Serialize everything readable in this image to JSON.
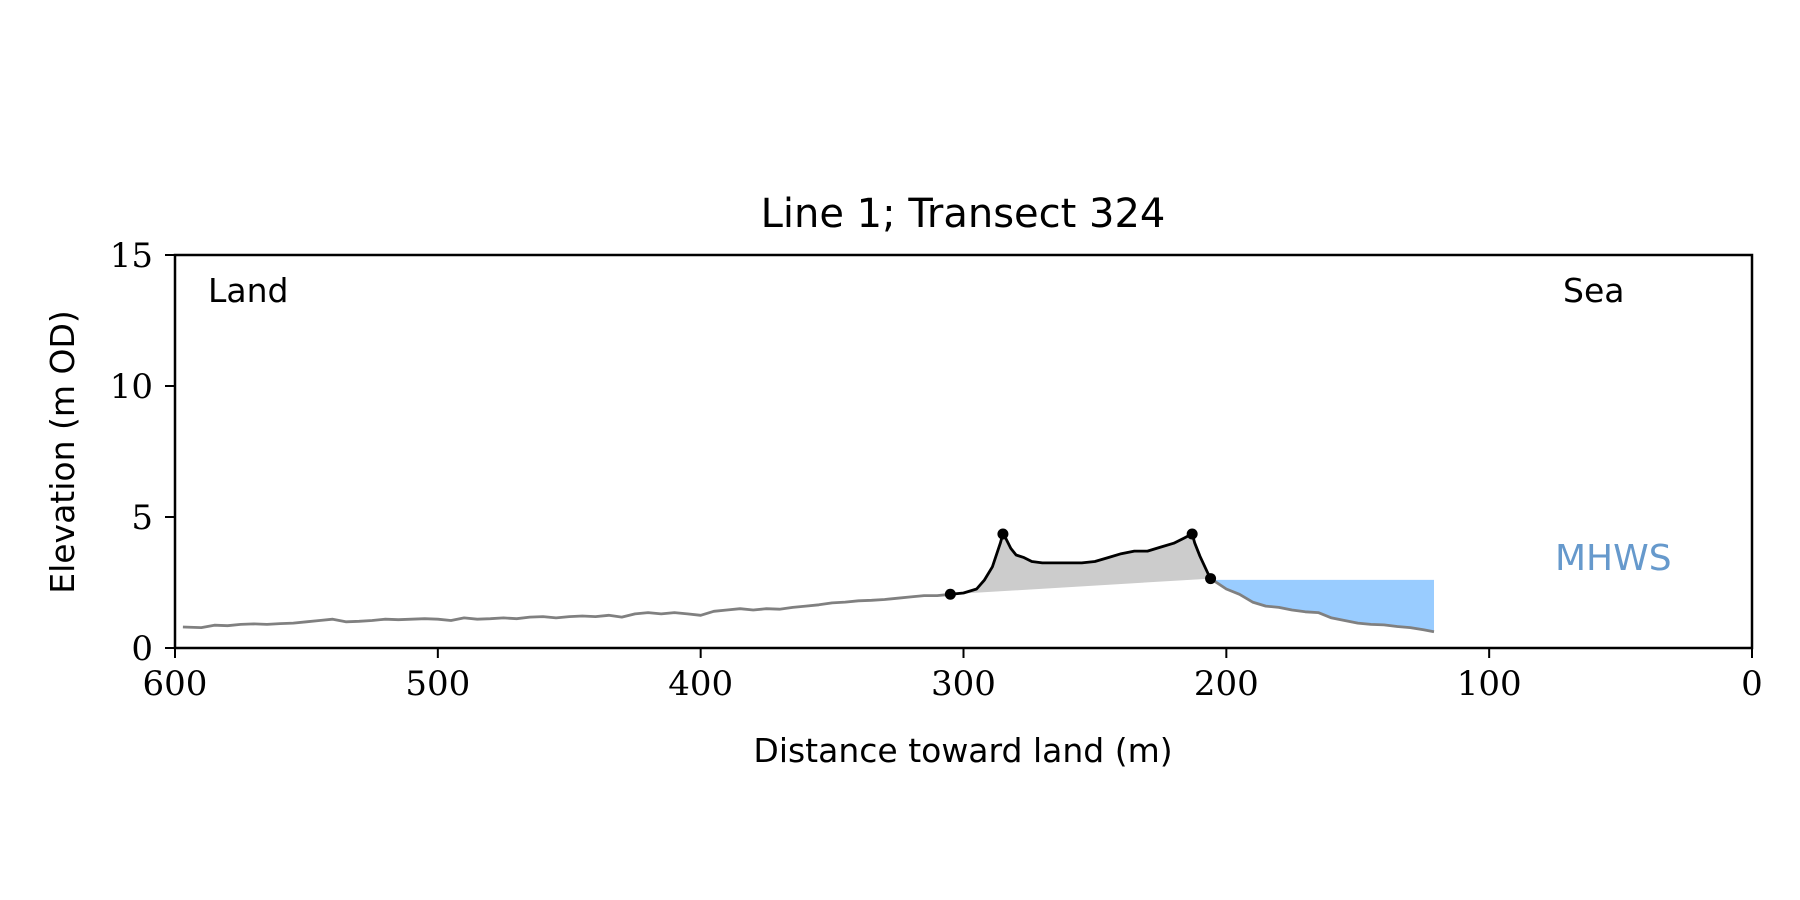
{
  "chart_data": {
    "type": "line",
    "title": "Line 1; Transect 324",
    "xlabel": "Distance toward land (m)",
    "ylabel": "Elevation (m OD)",
    "xlim": [
      600,
      0
    ],
    "ylim": [
      0,
      15
    ],
    "x_ticks": [
      600,
      500,
      400,
      300,
      200,
      100,
      0
    ],
    "y_ticks": [
      0,
      5,
      10,
      15
    ],
    "annotations": {
      "land": "Land",
      "sea": "Sea",
      "mhws": "MHWS"
    },
    "grid": false,
    "colors": {
      "profile": "#808080",
      "dune": "#000000",
      "dune_fill": "#cccccc",
      "water": "#99ccff",
      "mhws_label": "#6699cc"
    },
    "mhws_level": 2.6,
    "series": [
      {
        "role": "profile",
        "x": [
          597,
          590,
          585,
          580,
          575,
          570,
          565,
          560,
          555,
          550,
          545,
          540,
          535,
          530,
          525,
          520,
          515,
          510,
          505,
          500,
          495,
          490,
          485,
          480,
          475,
          470,
          465,
          460,
          455,
          450,
          445,
          440,
          435,
          430,
          425,
          420,
          415,
          410,
          405,
          400,
          395,
          390,
          385,
          380,
          375,
          370,
          365,
          360,
          355,
          350,
          345,
          340,
          335,
          330,
          325,
          320,
          315,
          310,
          305
        ],
        "y": [
          0.8,
          0.78,
          0.87,
          0.85,
          0.9,
          0.92,
          0.9,
          0.93,
          0.95,
          1.0,
          1.05,
          1.1,
          1.0,
          1.02,
          1.05,
          1.1,
          1.08,
          1.1,
          1.12,
          1.1,
          1.05,
          1.15,
          1.1,
          1.12,
          1.15,
          1.12,
          1.18,
          1.2,
          1.15,
          1.2,
          1.22,
          1.2,
          1.25,
          1.18,
          1.3,
          1.35,
          1.3,
          1.35,
          1.3,
          1.25,
          1.4,
          1.45,
          1.5,
          1.45,
          1.5,
          1.48,
          1.55,
          1.6,
          1.65,
          1.72,
          1.75,
          1.8,
          1.82,
          1.85,
          1.9,
          1.95,
          2.0,
          2.0,
          2.05
        ]
      },
      {
        "role": "dune",
        "x": [
          305,
          300,
          295,
          292,
          289,
          286,
          285,
          284,
          282,
          280,
          277,
          274,
          270,
          265,
          260,
          255,
          250,
          245,
          240,
          235,
          230,
          225,
          220,
          216,
          214,
          213,
          212,
          210,
          207,
          206
        ],
        "y": [
          2.05,
          2.1,
          2.25,
          2.6,
          3.1,
          4.0,
          4.35,
          4.2,
          3.8,
          3.55,
          3.45,
          3.3,
          3.25,
          3.25,
          3.25,
          3.25,
          3.3,
          3.45,
          3.6,
          3.7,
          3.7,
          3.85,
          4.0,
          4.2,
          4.3,
          4.35,
          4.0,
          3.5,
          2.85,
          2.65
        ]
      },
      {
        "role": "beach",
        "x": [
          206,
          200,
          195,
          190,
          185,
          180,
          175,
          170,
          165,
          160,
          155,
          150,
          145,
          140,
          135,
          130,
          125,
          121
        ],
        "y": [
          2.65,
          2.25,
          2.05,
          1.75,
          1.6,
          1.55,
          1.45,
          1.38,
          1.35,
          1.15,
          1.05,
          0.95,
          0.9,
          0.88,
          0.82,
          0.78,
          0.7,
          0.62
        ]
      }
    ],
    "dune_points": [
      {
        "x": 305,
        "y": 2.05
      },
      {
        "x": 285,
        "y": 4.35
      },
      {
        "x": 213,
        "y": 4.35
      },
      {
        "x": 206,
        "y": 2.65
      }
    ],
    "water_region": {
      "x_start": 206,
      "x_end": 121,
      "level": 2.6
    }
  }
}
